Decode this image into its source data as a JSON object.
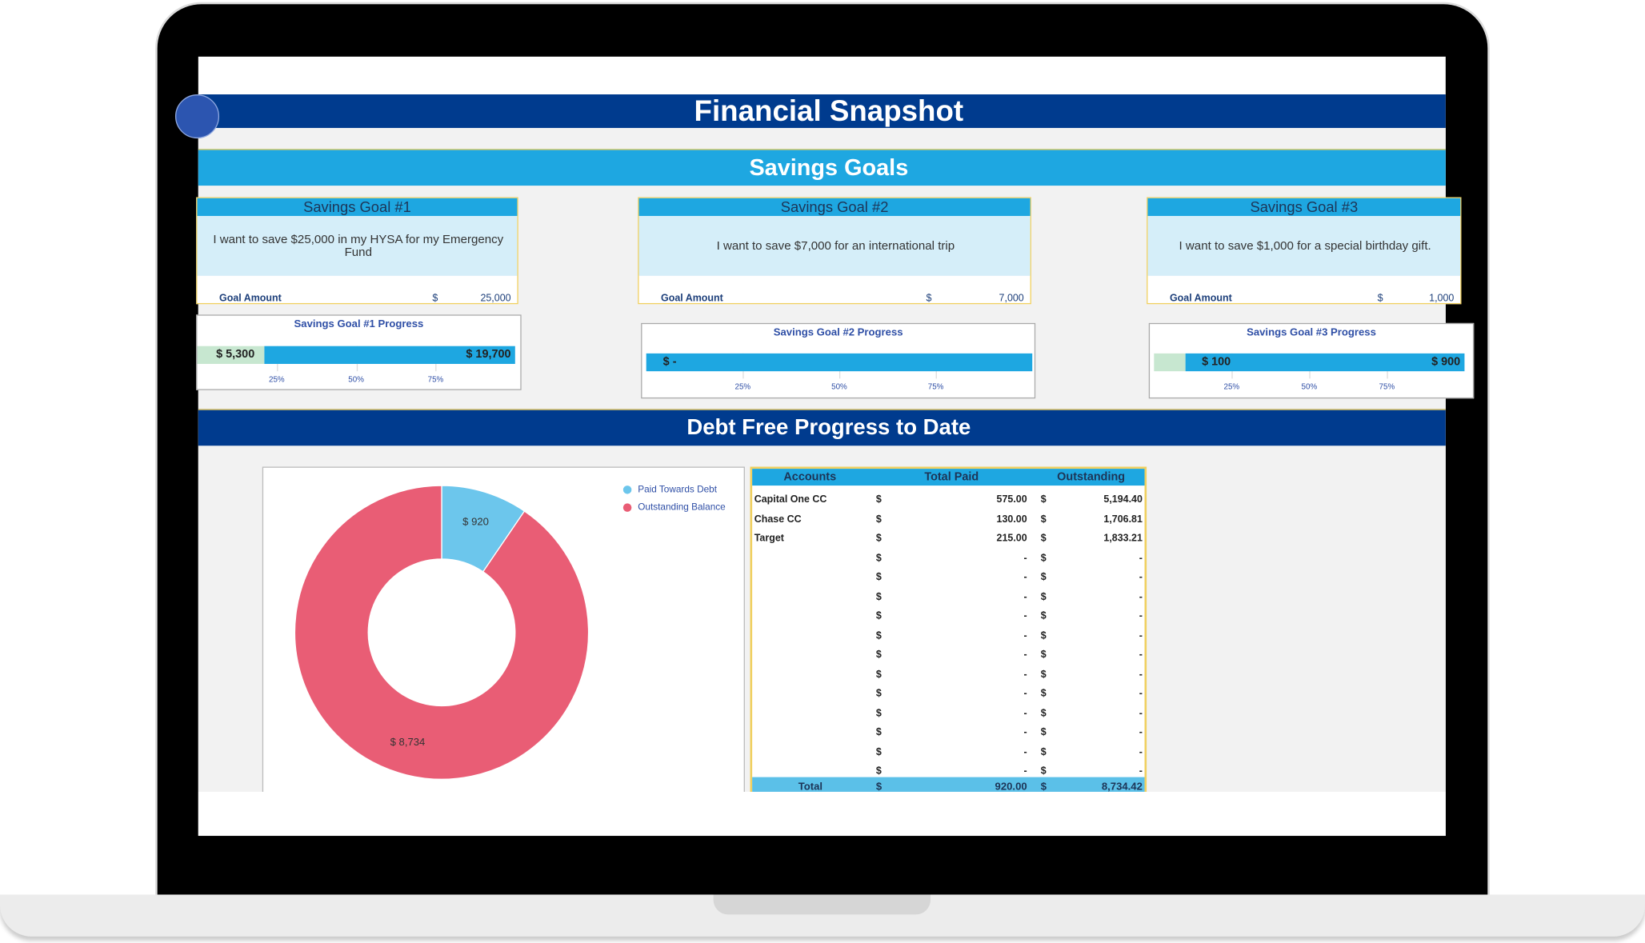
{
  "header": {
    "title": "Financial Snapshot"
  },
  "savings": {
    "title": "Savings Goals",
    "goals": [
      {
        "title": "Savings Goal #1",
        "description": "I want to save $25,000 in my HYSA for my Emergency Fund",
        "amount_label": "Goal Amount",
        "currency": "$",
        "amount": "25,000",
        "progress": {
          "title": "Savings Goal #1 Progress",
          "xlim": [
            0,
            25000
          ],
          "saved": 5300,
          "saved_label": "$ 5,300",
          "remaining": 19700,
          "remaining_label": "$ 19,700",
          "xticks": [
            {
              "value": 6250,
              "label": "25%"
            },
            {
              "value": 12500,
              "label": "50%"
            },
            {
              "value": 18750,
              "label": "75%"
            }
          ]
        }
      },
      {
        "title": "Savings Goal #2",
        "description": "I want to save $7,000 for an international trip",
        "amount_label": "Goal Amount",
        "currency": "$",
        "amount": "7,000",
        "progress": {
          "title": "Savings Goal #2 Progress",
          "xlim": [
            0,
            7000
          ],
          "saved": 0,
          "saved_label": "$ -",
          "remaining": 7000,
          "xticks": [
            {
              "value": 1750,
              "label": "25%"
            },
            {
              "value": 3500,
              "label": "50%"
            },
            {
              "value": 5250,
              "label": "75%"
            }
          ]
        }
      },
      {
        "title": "Savings Goal #3",
        "description": "I want to save $1,000 for a special birthday gift.",
        "amount_label": "Goal Amount",
        "currency": "$",
        "amount": "1,000",
        "progress": {
          "title": "Savings Goal #3 Progress",
          "xlim": [
            0,
            1000
          ],
          "saved": 100,
          "saved_label": "$ 100",
          "remaining": 900,
          "remaining_label": "$ 900",
          "xticks": [
            {
              "value": 250,
              "label": "25%"
            },
            {
              "value": 500,
              "label": "50%"
            },
            {
              "value": 750,
              "label": "75%"
            }
          ]
        }
      }
    ]
  },
  "debt": {
    "title": "Debt Free Progress to Date",
    "chart": {
      "type": "pie",
      "names": [
        "Paid Towards Debt",
        "Outstanding Balance"
      ],
      "colors": [
        "#6cc6ec",
        "#e95d75"
      ],
      "values": [
        920,
        8734
      ],
      "value_labels": [
        "$ 920",
        "$ 8,734"
      ]
    },
    "table": {
      "headers": [
        "Accounts",
        "Total Paid",
        "Outstanding"
      ],
      "rows": [
        [
          "Capital One  CC",
          "$",
          "575.00",
          "$",
          "5,194.40"
        ],
        [
          "Chase CC",
          "$",
          "130.00",
          "$",
          "1,706.81"
        ],
        [
          "Target",
          "$",
          "215.00",
          "$",
          "1,833.21"
        ],
        [
          null,
          "$",
          "-",
          "$",
          "-"
        ],
        [
          null,
          "$",
          "-",
          "$",
          "-"
        ],
        [
          null,
          "$",
          "-",
          "$",
          "-"
        ],
        [
          null,
          "$",
          "-",
          "$",
          "-"
        ],
        [
          null,
          "$",
          "-",
          "$",
          "-"
        ],
        [
          null,
          "$",
          "-",
          "$",
          "-"
        ],
        [
          null,
          "$",
          "-",
          "$",
          "-"
        ],
        [
          null,
          "$",
          "-",
          "$",
          "-"
        ],
        [
          null,
          "$",
          "-",
          "$",
          "-"
        ],
        [
          null,
          "$",
          "-",
          "$",
          "-"
        ],
        [
          null,
          "$",
          "-",
          "$",
          "-"
        ],
        [
          null,
          "$",
          "-",
          "$",
          "-"
        ]
      ],
      "total": [
        "Total",
        "$",
        "920.00",
        "$",
        "8,734.42"
      ]
    }
  }
}
